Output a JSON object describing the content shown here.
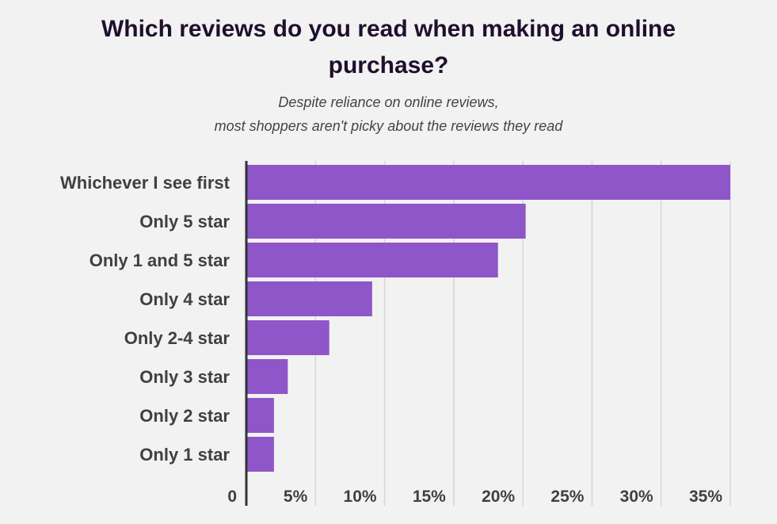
{
  "chart_data": {
    "type": "bar",
    "orientation": "horizontal",
    "title_lines": [
      "Which reviews do you read when making an online",
      "purchase?"
    ],
    "subtitle_lines": [
      "Despite reliance on online reviews,",
      "most shoppers aren't picky about the reviews they read"
    ],
    "categories": [
      "Whichever I see first",
      "Only 5 star",
      "Only 1 and 5 star",
      "Only 4 star",
      "Only 2-4 star",
      "Only 3 star",
      "Only 2 star",
      "Only 1 star"
    ],
    "values": [
      35.2,
      20.2,
      18.2,
      9.1,
      6.0,
      3.0,
      2.0,
      2.0
    ],
    "xlim": [
      0,
      35
    ],
    "x_ticks": [
      {
        "value": 0,
        "label": "0"
      },
      {
        "value": 5,
        "label": "5%"
      },
      {
        "value": 10,
        "label": "10%"
      },
      {
        "value": 15,
        "label": "15%"
      },
      {
        "value": 20,
        "label": "20%"
      },
      {
        "value": 25,
        "label": "25%"
      },
      {
        "value": 30,
        "label": "30%"
      },
      {
        "value": 35,
        "label": "35%"
      }
    ],
    "grid": true,
    "legend": "none",
    "bar_color": "#8e56c8",
    "grid_color": "#d6d6d6",
    "axis_color": "#333333"
  }
}
